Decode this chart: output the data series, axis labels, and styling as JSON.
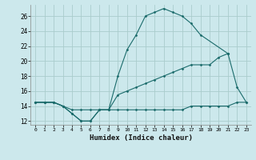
{
  "xlabel": "Humidex (Indice chaleur)",
  "bg_color": "#cce8ec",
  "grid_color": "#aacccc",
  "line_color": "#1a6b6b",
  "xlim": [
    -0.5,
    23.5
  ],
  "ylim": [
    11.5,
    27.5
  ],
  "xticks": [
    0,
    1,
    2,
    3,
    4,
    5,
    6,
    7,
    8,
    9,
    10,
    11,
    12,
    13,
    14,
    15,
    16,
    17,
    18,
    19,
    20,
    21,
    22,
    23
  ],
  "yticks": [
    12,
    14,
    16,
    18,
    20,
    22,
    24,
    26
  ],
  "series": [
    {
      "x": [
        0,
        1,
        2,
        3,
        4,
        5,
        6,
        7,
        8,
        9,
        10,
        11,
        12,
        13,
        14,
        15,
        16,
        17,
        18,
        21
      ],
      "y": [
        14.5,
        14.5,
        14.5,
        14.0,
        13.0,
        12.0,
        12.0,
        13.5,
        13.5,
        18.0,
        21.5,
        23.5,
        26.0,
        26.5,
        27.0,
        26.5,
        26.0,
        25.0,
        23.5,
        21.0
      ]
    },
    {
      "x": [
        0,
        1,
        2,
        3,
        4,
        5,
        6,
        7,
        8,
        9,
        10,
        11,
        12,
        13,
        14,
        15,
        16,
        17,
        18,
        19,
        20,
        21
      ],
      "y": [
        14.5,
        14.5,
        14.5,
        14.0,
        13.0,
        12.0,
        12.0,
        13.5,
        13.5,
        15.5,
        16.0,
        16.5,
        17.0,
        17.5,
        18.0,
        18.5,
        19.0,
        19.5,
        19.5,
        19.5,
        20.5,
        21.0
      ]
    },
    {
      "x": [
        0,
        1,
        2,
        3,
        4,
        5,
        6,
        7,
        8,
        9,
        10,
        11,
        12,
        13,
        14,
        15,
        16,
        17,
        18,
        19,
        20,
        21,
        22,
        23
      ],
      "y": [
        14.5,
        14.5,
        14.5,
        14.0,
        13.5,
        13.5,
        13.5,
        13.5,
        13.5,
        13.5,
        13.5,
        13.5,
        13.5,
        13.5,
        13.5,
        13.5,
        13.5,
        14.0,
        14.0,
        14.0,
        14.0,
        14.0,
        14.5,
        14.5
      ]
    },
    {
      "x": [
        21,
        22,
        23
      ],
      "y": [
        21.0,
        16.5,
        14.5
      ]
    }
  ]
}
